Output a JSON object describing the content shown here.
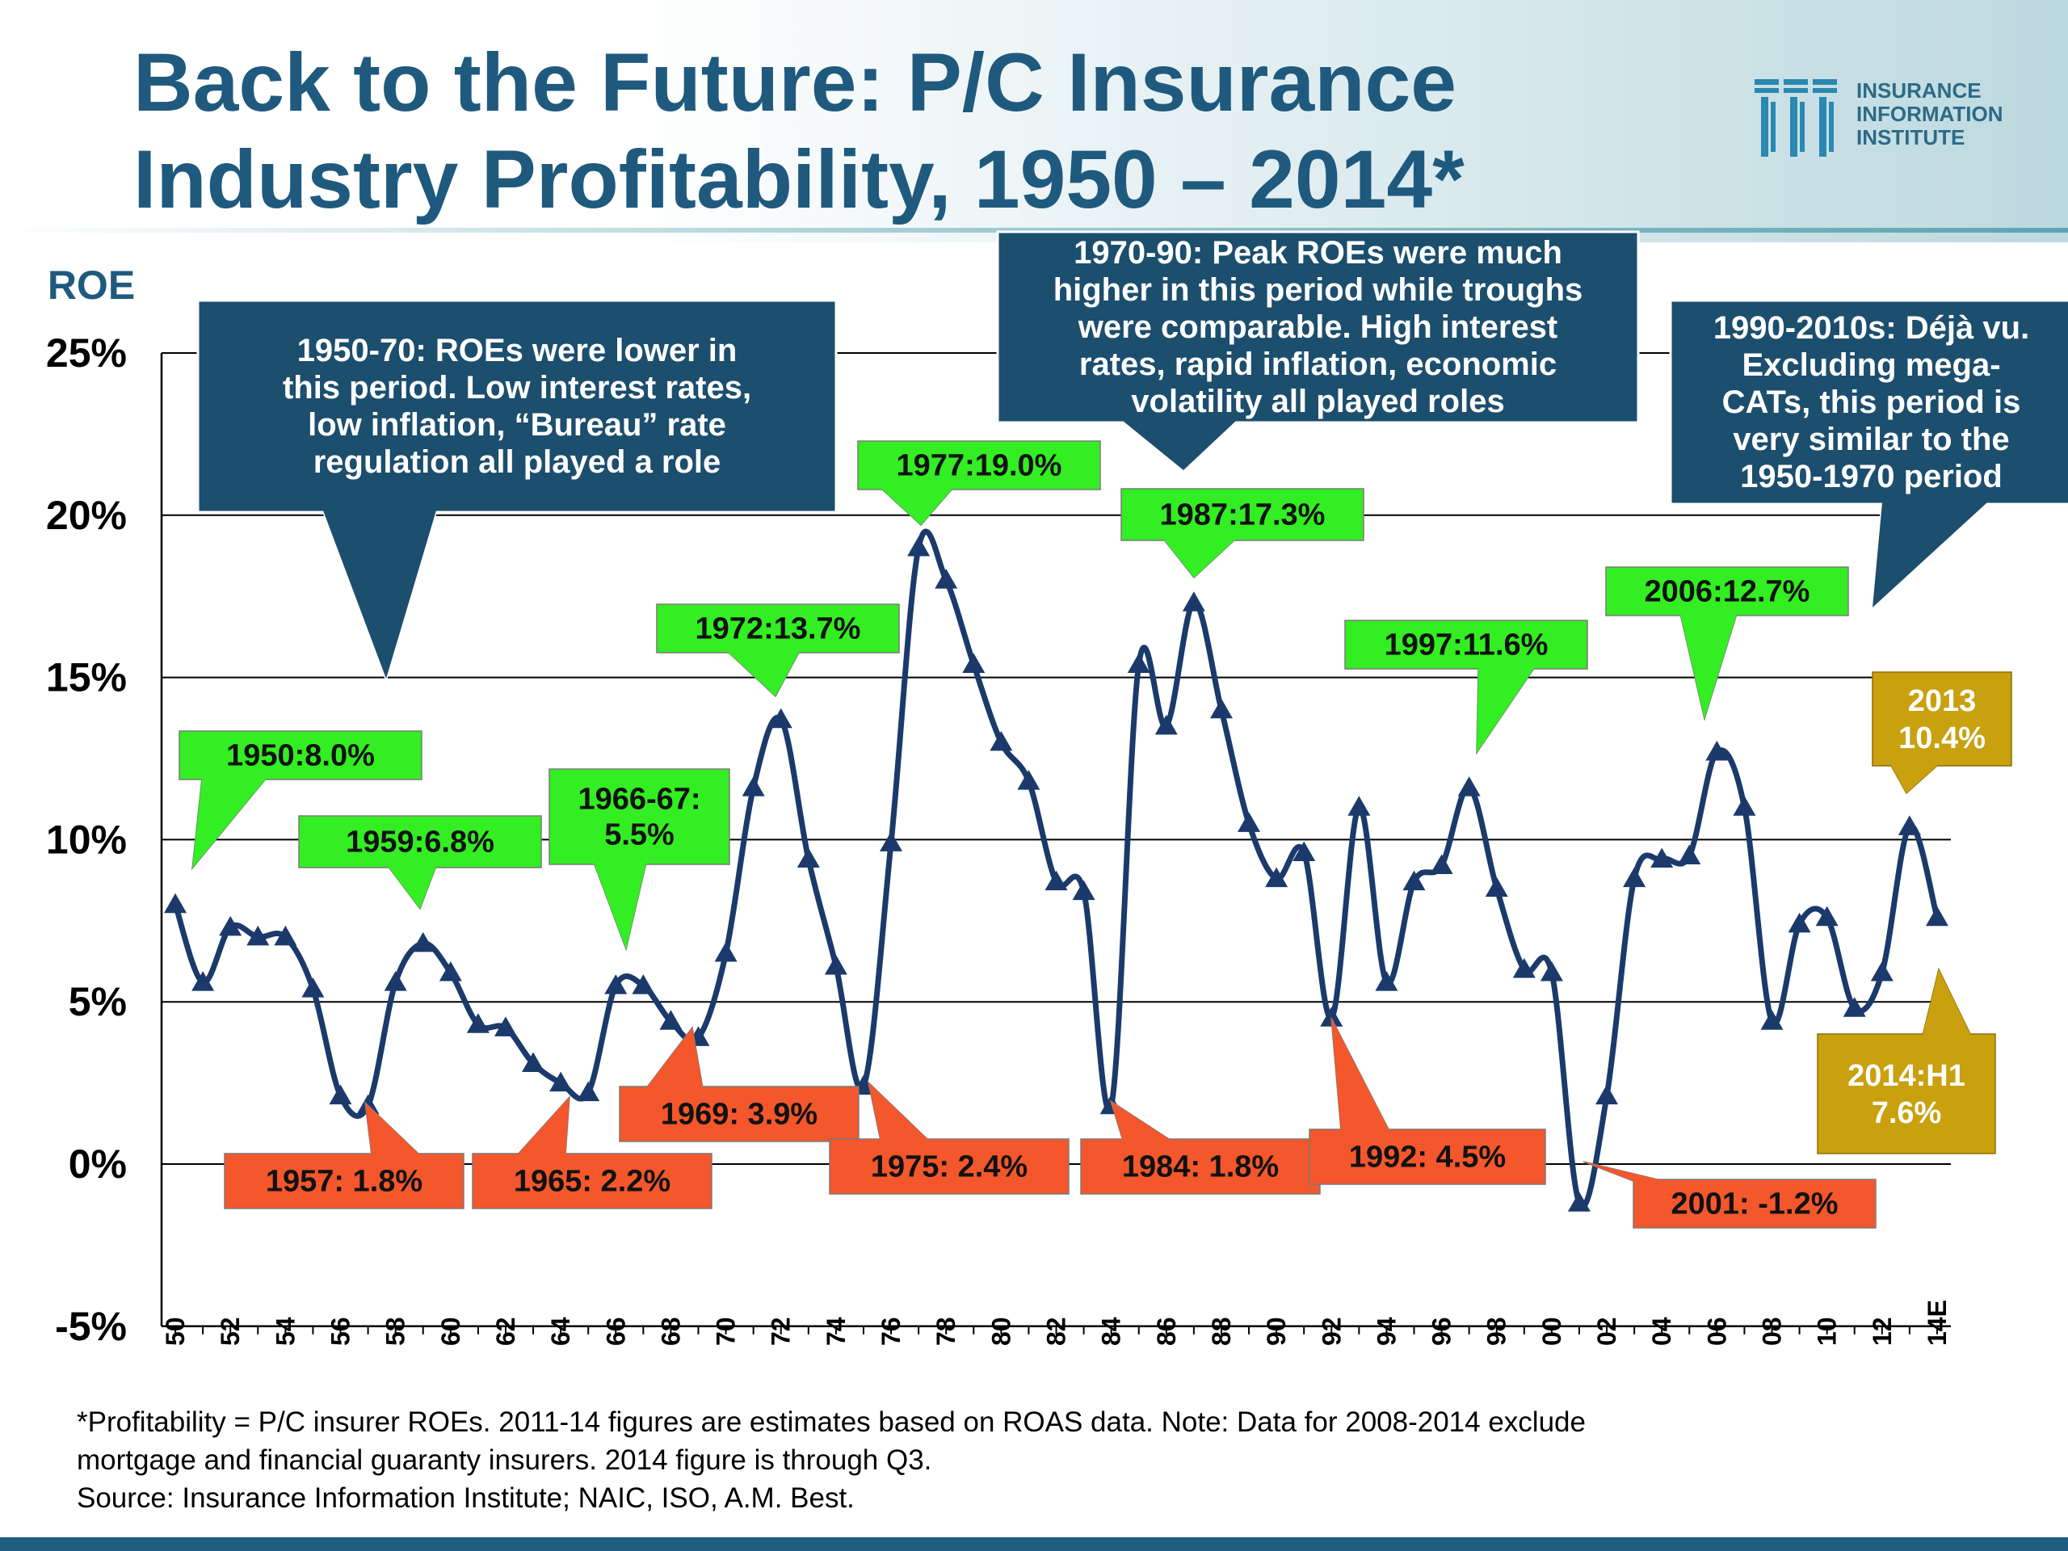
{
  "title": {
    "line1": "Back to the Future: P/C Insurance",
    "line2": "Industry Profitability, 1950 – 2014*"
  },
  "logo": {
    "line1": "INSURANCE",
    "line2": "INFORMATION",
    "line3": "INSTITUTE",
    "icon": "iii-logo-mark"
  },
  "footnote": {
    "line1": "*Profitability =  P/C insurer ROEs. 2011-14 figures are estimates based on ROAS data.  Note:  Data for 2008-2014 exclude",
    "line2": "mortgage and financial guaranty insurers. 2014 figure is through Q3.",
    "line3": "Source:  Insurance Information Institute; NAIC, ISO, A.M. Best."
  },
  "colors": {
    "title": "#1f5a7e",
    "line": "#1b3a6b",
    "navy_box": "#1c4e6e",
    "peak_box": "#33ee22",
    "trough_box": "#f4572b",
    "gold_box": "#c9a00e",
    "bottom_bar": "#1e5d80"
  },
  "chart_data": {
    "type": "line",
    "ylabel": "ROE",
    "ylim": [
      -5,
      25
    ],
    "yticks": [
      -5,
      0,
      5,
      10,
      15,
      20,
      25
    ],
    "ytick_labels": [
      "-5%",
      "0%",
      "5%",
      "10%",
      "15%",
      "20%",
      "25%"
    ],
    "gridlines": [
      0,
      5,
      10,
      15,
      20,
      25
    ],
    "x": [
      "50",
      "51",
      "52",
      "53",
      "54",
      "55",
      "56",
      "57",
      "58",
      "59",
      "60",
      "61",
      "62",
      "63",
      "64",
      "65",
      "66",
      "67",
      "68",
      "69",
      "70",
      "71",
      "72",
      "73",
      "74",
      "75",
      "76",
      "77",
      "78",
      "79",
      "80",
      "81",
      "82",
      "83",
      "84",
      "85",
      "86",
      "87",
      "88",
      "89",
      "90",
      "91",
      "92",
      "93",
      "94",
      "95",
      "96",
      "97",
      "98",
      "99",
      "00",
      "01",
      "02",
      "03",
      "04",
      "05",
      "06",
      "07",
      "08",
      "09",
      "10",
      "11",
      "12",
      "13",
      "14E"
    ],
    "xtick_labels": [
      "50",
      "52",
      "54",
      "56",
      "58",
      "60",
      "62",
      "64",
      "66",
      "68",
      "70",
      "72",
      "74",
      "76",
      "78",
      "80",
      "82",
      "84",
      "86",
      "88",
      "90",
      "92",
      "94",
      "96",
      "98",
      "00",
      "02",
      "04",
      "06",
      "08",
      "10",
      "12",
      "14E"
    ],
    "series": [
      {
        "name": "P/C insurer ROE (%)",
        "values": [
          8.0,
          5.6,
          7.3,
          7.0,
          7.0,
          5.4,
          2.1,
          1.8,
          5.6,
          6.8,
          5.9,
          4.3,
          4.2,
          3.1,
          2.5,
          2.2,
          5.5,
          5.5,
          4.4,
          3.9,
          6.5,
          11.6,
          13.7,
          9.4,
          6.1,
          2.4,
          9.9,
          19.0,
          18.0,
          15.4,
          13.0,
          11.8,
          8.7,
          8.4,
          1.8,
          15.4,
          13.5,
          17.3,
          14.0,
          10.5,
          8.8,
          9.6,
          4.5,
          11.0,
          5.6,
          8.7,
          9.2,
          11.6,
          8.5,
          6.0,
          5.9,
          -1.2,
          2.1,
          8.8,
          9.4,
          9.5,
          12.7,
          11.0,
          4.4,
          7.4,
          7.6,
          4.8,
          5.9,
          10.4,
          7.6
        ]
      }
    ],
    "callouts": [
      {
        "kind": "note",
        "text": "1950-70: ROEs were lower in this period.  Low interest rates, low inflation, “Bureau” rate regulation all played a role"
      },
      {
        "kind": "note",
        "text": "1970-90: Peak ROEs were much higher in this period while troughs were comparable.  High interest rates, rapid inflation, economic volatility all played roles"
      },
      {
        "kind": "note",
        "text": "1990-2010s: Déjà vu. Excluding mega-CATs, this period is very similar to the 1950-1970 period"
      },
      {
        "kind": "peak",
        "text": "1950:8.0%"
      },
      {
        "kind": "peak",
        "text": "1959:6.8%"
      },
      {
        "kind": "peak",
        "text": "1966-67: 5.5%"
      },
      {
        "kind": "peak",
        "text": "1972:13.7%"
      },
      {
        "kind": "peak",
        "text": "1977:19.0%"
      },
      {
        "kind": "peak",
        "text": "1987:17.3%"
      },
      {
        "kind": "peak",
        "text": "1997:11.6%"
      },
      {
        "kind": "peak",
        "text": "2006:12.7%"
      },
      {
        "kind": "gold",
        "text": "2013 10.4%"
      },
      {
        "kind": "gold",
        "text": "2014:H1 7.6%"
      },
      {
        "kind": "trough",
        "text": "1957: 1.8%"
      },
      {
        "kind": "trough",
        "text": "1965: 2.2%"
      },
      {
        "kind": "trough",
        "text": "1969: 3.9%"
      },
      {
        "kind": "trough",
        "text": "1975: 2.4%"
      },
      {
        "kind": "trough",
        "text": "1984: 1.8%"
      },
      {
        "kind": "trough",
        "text": "1992: 4.5%"
      },
      {
        "kind": "trough",
        "text": "2001: -1.2%"
      }
    ]
  }
}
